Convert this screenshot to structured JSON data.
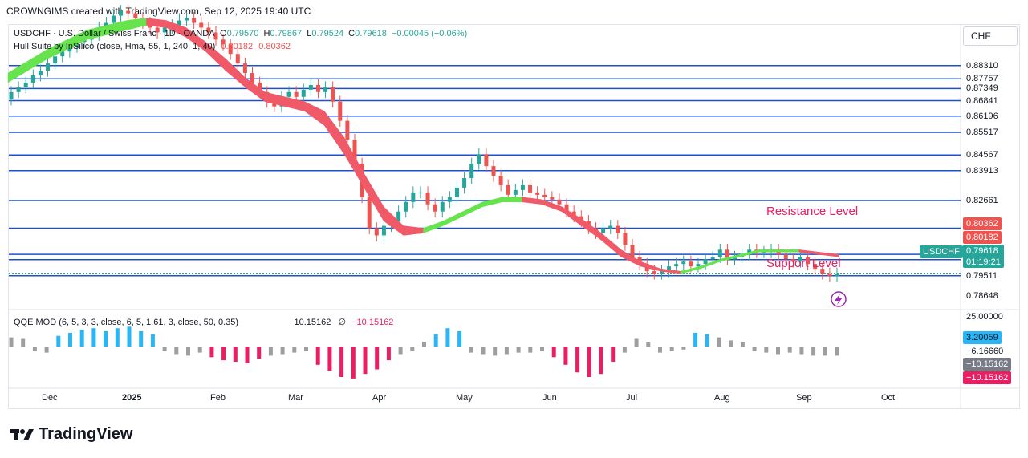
{
  "header": "CROWNGIMS created with TradingView.com, Sep 12, 2025 19:40 UTC",
  "legend": {
    "symbol": "USDCHF · U.S. Dollar / Swiss Franc · 1D · OANDA",
    "o": "O",
    "o_val": "0.79570",
    "h": "H",
    "h_val": "0.79867",
    "l": "L",
    "l_val": "0.79524",
    "c": "C",
    "c_val": "0.79618",
    "change": "−0.00045 (−0.06%)",
    "indicator": "Hull Suite by InSilico (close, Hma, 55, 1, 240, 1, 40)",
    "ind_v1": "0.80182",
    "ind_v2": "0.80362"
  },
  "qqe_legend": {
    "name": "QQE MOD (6, 5, 3, 3, close, 6, 5, 1.61, 3, close, 50, 0.35)",
    "v1": "−10.15162",
    "sym": "∅",
    "v2": "−10.15162"
  },
  "currency": "CHF",
  "price_levels": [
    "0.88310",
    "0.87757",
    "0.87349",
    "0.86841",
    "0.86196",
    "0.85517",
    "0.84567",
    "0.83913",
    "0.82661",
    "0.81502",
    "0.80405",
    "0.80362",
    "0.80182",
    "0.79511",
    "0.78648"
  ],
  "tags": {
    "symbol": "USDCHF",
    "price": "0.79618",
    "countdown": "01:19:21",
    "qqe_top": "25.00000",
    "qqe_a": "3.20059",
    "qqe_b": "−6.16660",
    "qqe_c": "−10.15162",
    "qqe_d": "−10.15162"
  },
  "annotations": {
    "resistance": "Resistance Level",
    "support": "Support Level"
  },
  "months": [
    "Dec",
    "2025",
    "Feb",
    "Mar",
    "Apr",
    "May",
    "Jun",
    "Jul",
    "Aug",
    "Sep",
    "Oct"
  ],
  "footer": "TradingView",
  "colors": {
    "up": "#26a69a",
    "down": "#ef5350",
    "hull_up": "#66e34d",
    "hull_down": "#f05a68",
    "level": "#1e4fd1",
    "qqe_blue": "#29b6f6",
    "qqe_red": "#e91e63",
    "qqe_gray": "#9e9e9e"
  },
  "chart_data": {
    "type": "candlestick",
    "symbol": "USDCHF",
    "timeframe": "1D",
    "months": [
      "Dec",
      "2025",
      "Feb",
      "Mar",
      "Apr",
      "May",
      "Jun",
      "Jul",
      "Aug",
      "Sep",
      "Oct"
    ],
    "horizontal_levels": [
      0.8831,
      0.87757,
      0.87349,
      0.86841,
      0.86196,
      0.85517,
      0.84567,
      0.83913,
      0.82661,
      0.81502,
      0.80405,
      0.80182,
      0.79511
    ],
    "last_close": 0.79618,
    "ohlc_last": {
      "open": 0.7957,
      "high": 0.79867,
      "low": 0.79524,
      "close": 0.79618
    },
    "closes": [
      0.872,
      0.874,
      0.876,
      0.879,
      0.881,
      0.884,
      0.887,
      0.889,
      0.891,
      0.893,
      0.894,
      0.896,
      0.899,
      0.901,
      0.904,
      0.906,
      0.905,
      0.903,
      0.901,
      0.899,
      0.897,
      0.899,
      0.9,
      0.902,
      0.903,
      0.901,
      0.899,
      0.897,
      0.894,
      0.892,
      0.888,
      0.884,
      0.88,
      0.876,
      0.872,
      0.868,
      0.866,
      0.87,
      0.872,
      0.87,
      0.873,
      0.875,
      0.872,
      0.874,
      0.868,
      0.86,
      0.852,
      0.842,
      0.828,
      0.815,
      0.812,
      0.816,
      0.818,
      0.822,
      0.826,
      0.83,
      0.83,
      0.825,
      0.822,
      0.826,
      0.828,
      0.832,
      0.836,
      0.842,
      0.846,
      0.841,
      0.837,
      0.833,
      0.829,
      0.831,
      0.833,
      0.83,
      0.829,
      0.828,
      0.827,
      0.825,
      0.822,
      0.82,
      0.818,
      0.815,
      0.813,
      0.815,
      0.816,
      0.813,
      0.808,
      0.803,
      0.8,
      0.797,
      0.796,
      0.797,
      0.799,
      0.8,
      0.801,
      0.799,
      0.8,
      0.802,
      0.803,
      0.806,
      0.802,
      0.803,
      0.804,
      0.806,
      0.805,
      0.805,
      0.806,
      0.804,
      0.802,
      0.801,
      0.803,
      0.8,
      0.798,
      0.796,
      0.795,
      0.796
    ],
    "hull_band": [
      [
        0.88,
        0.876
      ],
      [
        0.885,
        0.881
      ],
      [
        0.89,
        0.886
      ],
      [
        0.894,
        0.89
      ],
      [
        0.898,
        0.894
      ],
      [
        0.9,
        0.896
      ],
      [
        0.902,
        0.898
      ],
      [
        0.903,
        0.9
      ],
      [
        0.902,
        0.899
      ],
      [
        0.899,
        0.895
      ],
      [
        0.893,
        0.889
      ],
      [
        0.886,
        0.881
      ],
      [
        0.878,
        0.874
      ],
      [
        0.872,
        0.868
      ],
      [
        0.87,
        0.866
      ],
      [
        0.868,
        0.864
      ],
      [
        0.864,
        0.858
      ],
      [
        0.853,
        0.846
      ],
      [
        0.838,
        0.832
      ],
      [
        0.824,
        0.818
      ],
      [
        0.816,
        0.812
      ],
      [
        0.815,
        0.813
      ],
      [
        0.818,
        0.816
      ],
      [
        0.822,
        0.82
      ],
      [
        0.826,
        0.824
      ],
      [
        0.828,
        0.826
      ],
      [
        0.828,
        0.826
      ],
      [
        0.827,
        0.825
      ],
      [
        0.824,
        0.822
      ],
      [
        0.819,
        0.816
      ],
      [
        0.813,
        0.81
      ],
      [
        0.806,
        0.803
      ],
      [
        0.801,
        0.799
      ],
      [
        0.798,
        0.797
      ],
      [
        0.797,
        0.796
      ],
      [
        0.799,
        0.798
      ],
      [
        0.802,
        0.801
      ],
      [
        0.804,
        0.803
      ],
      [
        0.806,
        0.805
      ],
      [
        0.806,
        0.805
      ],
      [
        0.806,
        0.805
      ],
      [
        0.805,
        0.804
      ],
      [
        0.804,
        0.803
      ]
    ],
    "qqe_histogram": [
      6,
      5,
      -3,
      -4,
      7,
      9,
      11,
      12,
      10,
      12,
      13,
      10,
      8,
      -3,
      -5,
      -6,
      -4,
      -7,
      -9,
      -10,
      -11,
      -8,
      -6,
      -5,
      -4,
      -3,
      -12,
      -16,
      -20,
      -21,
      -18,
      -15,
      -9,
      -5,
      -3,
      3,
      8,
      12,
      10,
      -4,
      -5,
      -6,
      -5,
      -4,
      -4,
      -3,
      -7,
      -12,
      -17,
      -20,
      -18,
      -10,
      -4,
      5,
      3,
      -4,
      -3,
      -2,
      9,
      8,
      6,
      4,
      3,
      -3,
      -4,
      -5,
      -4,
      -5,
      -6,
      -6,
      -6
    ],
    "qqe_scale": [
      25.0,
      3.20059,
      -6.1666,
      -10.15162
    ],
    "annotations": [
      "Resistance Level",
      "Support Level"
    ]
  }
}
